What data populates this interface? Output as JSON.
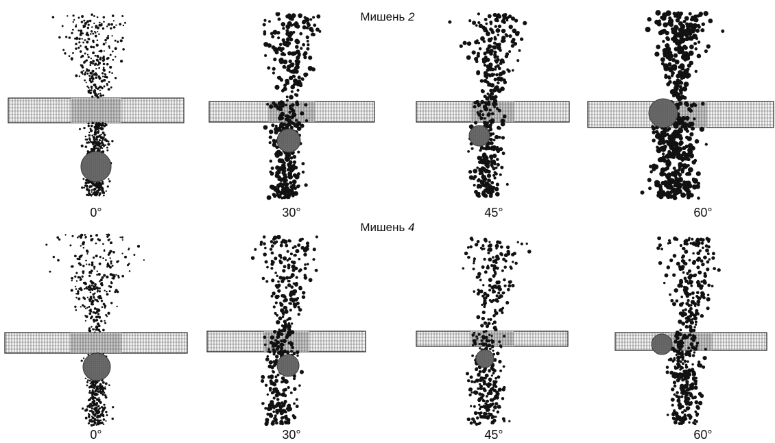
{
  "rows": [
    {
      "title_prefix": "Мишень",
      "title_number": "2",
      "panels": [
        {
          "label": "0°"
        },
        {
          "label": "30°"
        },
        {
          "label": "45°"
        },
        {
          "label": "60°"
        }
      ]
    },
    {
      "title_prefix": "Мишень",
      "title_number": "4",
      "panels": [
        {
          "label": "0°"
        },
        {
          "label": "30°"
        },
        {
          "label": "45°"
        },
        {
          "label": "60°"
        }
      ]
    }
  ],
  "colors": {
    "particle": "#111111",
    "plate_line": "#222222",
    "plate_light": "#c8c8c8",
    "projectile": "#6e6e6e"
  }
}
